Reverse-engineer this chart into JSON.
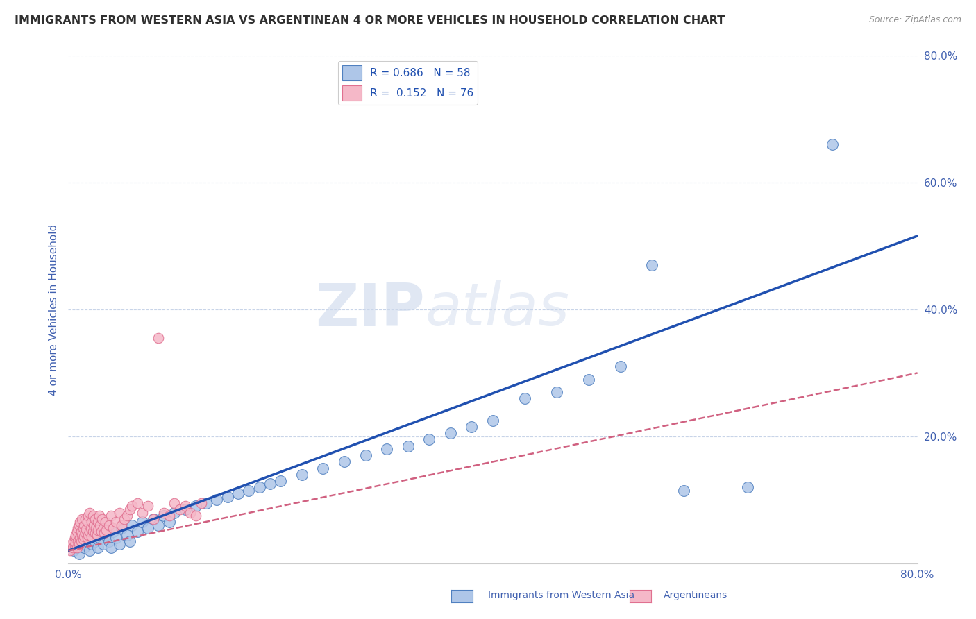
{
  "title": "IMMIGRANTS FROM WESTERN ASIA VS ARGENTINEAN 4 OR MORE VEHICLES IN HOUSEHOLD CORRELATION CHART",
  "source": "Source: ZipAtlas.com",
  "ylabel": "4 or more Vehicles in Household",
  "xmin": 0.0,
  "xmax": 0.8,
  "ymin": 0.0,
  "ymax": 0.8,
  "r_blue": 0.686,
  "n_blue": 58,
  "r_pink": 0.152,
  "n_pink": 76,
  "blue_color": "#aec6e8",
  "pink_color": "#f5b8c8",
  "blue_edge_color": "#5080c0",
  "pink_edge_color": "#e07090",
  "blue_line_color": "#2050b0",
  "pink_line_color": "#d06080",
  "legend_label_blue": "Immigrants from Western Asia",
  "legend_label_pink": "Argentineans",
  "watermark_zip": "ZIP",
  "watermark_atlas": "atlas",
  "background_color": "#ffffff",
  "grid_color": "#c8d4e8",
  "title_color": "#303030",
  "axis_label_color": "#4060b0",
  "legend_text_color": "#2050b0",
  "blue_line_slope": 0.62,
  "blue_line_intercept": 0.02,
  "pink_line_slope": 0.35,
  "pink_line_intercept": 0.02,
  "blue_x": [
    0.005,
    0.008,
    0.01,
    0.012,
    0.015,
    0.018,
    0.02,
    0.022,
    0.025,
    0.028,
    0.03,
    0.033,
    0.035,
    0.038,
    0.04,
    0.042,
    0.045,
    0.048,
    0.05,
    0.055,
    0.058,
    0.06,
    0.065,
    0.07,
    0.075,
    0.08,
    0.085,
    0.09,
    0.095,
    0.1,
    0.11,
    0.12,
    0.13,
    0.14,
    0.15,
    0.16,
    0.17,
    0.18,
    0.19,
    0.2,
    0.22,
    0.24,
    0.26,
    0.28,
    0.3,
    0.32,
    0.34,
    0.36,
    0.38,
    0.4,
    0.43,
    0.46,
    0.49,
    0.52,
    0.55,
    0.58,
    0.64,
    0.72
  ],
  "blue_y": [
    0.02,
    0.025,
    0.015,
    0.03,
    0.025,
    0.035,
    0.02,
    0.03,
    0.035,
    0.025,
    0.04,
    0.03,
    0.045,
    0.035,
    0.025,
    0.05,
    0.04,
    0.03,
    0.055,
    0.045,
    0.035,
    0.06,
    0.05,
    0.065,
    0.055,
    0.07,
    0.06,
    0.075,
    0.065,
    0.08,
    0.085,
    0.09,
    0.095,
    0.1,
    0.105,
    0.11,
    0.115,
    0.12,
    0.125,
    0.13,
    0.14,
    0.15,
    0.16,
    0.17,
    0.18,
    0.185,
    0.195,
    0.205,
    0.215,
    0.225,
    0.26,
    0.27,
    0.29,
    0.31,
    0.47,
    0.115,
    0.12,
    0.66
  ],
  "pink_x": [
    0.002,
    0.003,
    0.004,
    0.005,
    0.006,
    0.006,
    0.007,
    0.007,
    0.008,
    0.008,
    0.009,
    0.009,
    0.01,
    0.01,
    0.011,
    0.011,
    0.012,
    0.012,
    0.013,
    0.013,
    0.014,
    0.014,
    0.015,
    0.015,
    0.016,
    0.016,
    0.017,
    0.018,
    0.018,
    0.019,
    0.019,
    0.02,
    0.02,
    0.021,
    0.022,
    0.022,
    0.023,
    0.023,
    0.024,
    0.025,
    0.025,
    0.026,
    0.027,
    0.028,
    0.028,
    0.029,
    0.03,
    0.031,
    0.032,
    0.033,
    0.034,
    0.035,
    0.036,
    0.038,
    0.04,
    0.042,
    0.045,
    0.048,
    0.05,
    0.053,
    0.055,
    0.058,
    0.06,
    0.065,
    0.07,
    0.075,
    0.08,
    0.085,
    0.09,
    0.095,
    0.1,
    0.105,
    0.11,
    0.115,
    0.12,
    0.125
  ],
  "pink_y": [
    0.02,
    0.03,
    0.025,
    0.035,
    0.028,
    0.04,
    0.032,
    0.045,
    0.025,
    0.05,
    0.035,
    0.055,
    0.03,
    0.06,
    0.04,
    0.065,
    0.035,
    0.05,
    0.045,
    0.07,
    0.038,
    0.055,
    0.042,
    0.06,
    0.048,
    0.07,
    0.053,
    0.04,
    0.065,
    0.045,
    0.075,
    0.05,
    0.08,
    0.055,
    0.042,
    0.065,
    0.05,
    0.075,
    0.06,
    0.048,
    0.07,
    0.055,
    0.045,
    0.065,
    0.052,
    0.075,
    0.06,
    0.05,
    0.07,
    0.055,
    0.048,
    0.065,
    0.052,
    0.06,
    0.075,
    0.055,
    0.065,
    0.08,
    0.06,
    0.07,
    0.075,
    0.085,
    0.09,
    0.095,
    0.08,
    0.09,
    0.07,
    0.355,
    0.08,
    0.075,
    0.095,
    0.085,
    0.09,
    0.08,
    0.075,
    0.095
  ]
}
